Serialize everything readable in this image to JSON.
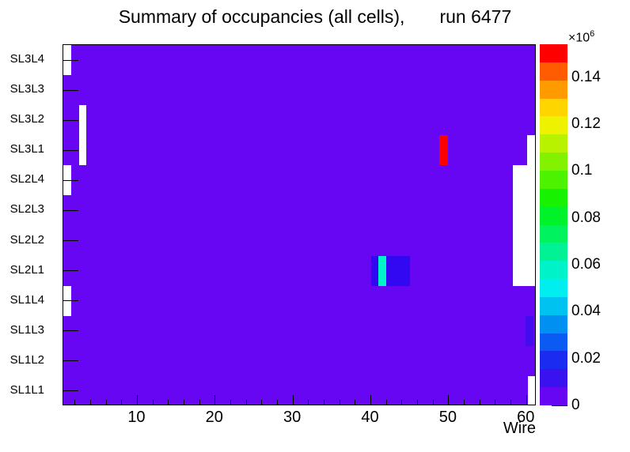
{
  "title": {
    "main": "Summary of occupancies (all cells),",
    "run": "run 6477"
  },
  "colors": {
    "background_bin": "#6606f2",
    "empty_bin": "#ffffff",
    "axis": "#000000"
  },
  "chart_data": {
    "type": "heatmap",
    "title": "Summary of occupancies (all cells),  run 6477",
    "xlabel": "Wire",
    "x_range": [
      0.5,
      61.3
    ],
    "x_major_ticks": [
      10,
      20,
      30,
      40,
      50,
      60
    ],
    "x_minor_tick_step": 2,
    "rows_top_to_bottom": [
      "SL3L4",
      "SL3L3",
      "SL3L2",
      "SL3L1",
      "SL2L4",
      "SL2L3",
      "SL2L2",
      "SL2L1",
      "SL1L4",
      "SL1L3",
      "SL1L2",
      "SL1L1"
    ],
    "z_scale_base": "×10",
    "z_scale_exponent": "6",
    "z_max_e6": 0.154,
    "colorbar_tick_values": [
      0.14,
      0.12,
      0.1,
      0.08,
      0.06,
      0.04,
      0.02,
      0
    ],
    "colorbar_tick_labels": [
      "0.14",
      "0.12",
      "0.1",
      "0.08",
      "0.06",
      "0.04",
      "0.02",
      "0"
    ],
    "palette_bottom_to_top": [
      "#6606f2",
      "#3912ef",
      "#1b2bf0",
      "#0b5bf2",
      "#0090f2",
      "#00c2f0",
      "#00eef0",
      "#00f2c8",
      "#00f294",
      "#00f25e",
      "#00f22a",
      "#16f200",
      "#4cf200",
      "#82f200",
      "#b8f200",
      "#eef200",
      "#ffd500",
      "#ff9b00",
      "#ff5b00",
      "#ff0000"
    ],
    "background_note": "all other bins near zero occupancy",
    "features": [
      {
        "rows": [
          "SL3L4"
        ],
        "x0": 0.5,
        "x1": 1.5,
        "kind": "empty"
      },
      {
        "rows": [
          "SL2L4"
        ],
        "x0": 0.5,
        "x1": 1.5,
        "kind": "empty"
      },
      {
        "rows": [
          "SL1L4"
        ],
        "x0": 0.5,
        "x1": 1.5,
        "kind": "empty"
      },
      {
        "rows": [
          "SL3L2",
          "SL3L1"
        ],
        "x0": 2.5,
        "x1": 3.5,
        "kind": "empty"
      },
      {
        "rows": [
          "SL3L1"
        ],
        "x0": 60.1,
        "x1": 61.3,
        "kind": "empty"
      },
      {
        "rows": [
          "SL2L4",
          "SL2L3",
          "SL2L2",
          "SL2L1"
        ],
        "x0": 58.3,
        "x1": 61.3,
        "kind": "empty"
      },
      {
        "rows": [
          "SL1L1"
        ],
        "x0": 60.2,
        "x1": 61.15,
        "kind": "empty"
      },
      {
        "rows": [
          "SL2L1"
        ],
        "x0": 40.0,
        "x1": 45.0,
        "kind": "bin",
        "color": "#3208f2",
        "value_e6": 0.015
      },
      {
        "rows": [
          "SL2L1"
        ],
        "x0": 41.0,
        "x1": 42.0,
        "kind": "bin",
        "color": "#00f2c8",
        "value_e6": 0.057
      },
      {
        "rows": [
          "SL3L1"
        ],
        "x0": 48.8,
        "x1": 49.9,
        "kind": "bin",
        "color": "#ff0000",
        "value_e6": 0.15
      },
      {
        "rows": [
          "SL1L3"
        ],
        "x0": 59.9,
        "x1": 60.9,
        "kind": "bin",
        "color": "#430cef",
        "value_e6": 0.01
      }
    ]
  }
}
